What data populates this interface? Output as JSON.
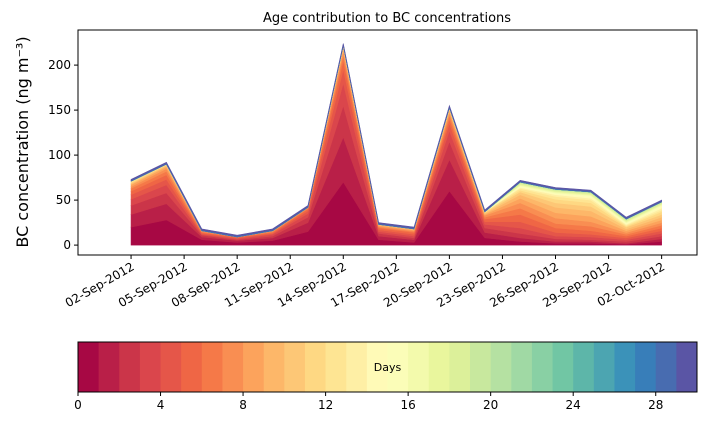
{
  "chart_data": {
    "type": "stacked-area",
    "title": "Age contribution to BC concentrations",
    "ylabel": "BC concentration (ng m⁻³)",
    "x": [
      "2012-09-02",
      "2012-09-04",
      "2012-09-06",
      "2012-09-08",
      "2012-09-10",
      "2012-09-12",
      "2012-09-14",
      "2012-09-16",
      "2012-09-18",
      "2012-09-20",
      "2012-09-22",
      "2012-09-24",
      "2012-09-26",
      "2012-09-28",
      "2012-09-30",
      "2012-10-02"
    ],
    "xlim": [
      "2012-08-30",
      "2012-10-04"
    ],
    "xticks": [
      {
        "value": "2012-09-02",
        "label": "02-Sep-2012"
      },
      {
        "value": "2012-09-05",
        "label": "05-Sep-2012"
      },
      {
        "value": "2012-09-08",
        "label": "08-Sep-2012"
      },
      {
        "value": "2012-09-11",
        "label": "11-Sep-2012"
      },
      {
        "value": "2012-09-14",
        "label": "14-Sep-2012"
      },
      {
        "value": "2012-09-17",
        "label": "17-Sep-2012"
      },
      {
        "value": "2012-09-20",
        "label": "20-Sep-2012"
      },
      {
        "value": "2012-09-23",
        "label": "23-Sep-2012"
      },
      {
        "value": "2012-09-26",
        "label": "26-Sep-2012"
      },
      {
        "value": "2012-09-29",
        "label": "29-Sep-2012"
      },
      {
        "value": "2012-10-02",
        "label": "02-Oct-2012"
      }
    ],
    "ylim": [
      -11,
      239
    ],
    "yticks": [
      0,
      50,
      100,
      150,
      200
    ],
    "colorbar": {
      "label": "Days",
      "lim": [
        0,
        30
      ],
      "ticks": [
        0,
        4,
        8,
        12,
        16,
        20,
        24,
        28
      ]
    },
    "series": [
      {
        "color": "#a70844",
        "values": [
          20,
          28,
          6,
          3,
          5,
          15,
          70,
          6,
          3,
          60,
          8,
          4,
          2,
          2,
          1,
          4
        ]
      },
      {
        "color": "#b91f48",
        "values": [
          14,
          18,
          3,
          2,
          3,
          10,
          50,
          4,
          3,
          35,
          6,
          4,
          2,
          2,
          1,
          3
        ]
      },
      {
        "color": "#cb3549",
        "values": [
          10,
          12,
          2,
          1,
          2,
          6,
          35,
          3,
          2,
          20,
          5,
          5,
          3,
          2,
          2,
          3
        ]
      },
      {
        "color": "#da464c",
        "values": [
          7,
          9,
          1,
          1,
          2,
          4,
          25,
          2,
          2,
          12,
          4,
          6,
          3,
          3,
          2,
          3
        ]
      },
      {
        "color": "#e55649",
        "values": [
          5,
          6,
          1,
          1,
          1,
          3,
          15,
          2,
          2,
          8,
          3,
          7,
          4,
          3,
          2,
          3
        ]
      },
      {
        "color": "#ef6645",
        "values": [
          4,
          5,
          1,
          1,
          1,
          2,
          10,
          2,
          2,
          5,
          3,
          8,
          5,
          4,
          2,
          3
        ]
      },
      {
        "color": "#f57948",
        "values": [
          3,
          4,
          1,
          0,
          1,
          1,
          6,
          1,
          1,
          4,
          2,
          7,
          5,
          5,
          2,
          3
        ]
      },
      {
        "color": "#f98e52",
        "values": [
          2,
          3,
          1,
          0,
          1,
          1,
          4,
          1,
          1,
          3,
          2,
          6,
          6,
          5,
          2,
          3
        ]
      },
      {
        "color": "#fca35c",
        "values": [
          2,
          2,
          0,
          0,
          0,
          0,
          3,
          1,
          1,
          2,
          1,
          5,
          6,
          6,
          2,
          3
        ]
      },
      {
        "color": "#fdb769",
        "values": [
          1,
          1,
          0,
          0,
          0,
          0,
          2,
          1,
          1,
          2,
          1,
          4,
          6,
          6,
          2,
          3
        ]
      },
      {
        "color": "#fdc776",
        "values": [
          1,
          1,
          0,
          0,
          0,
          0,
          1,
          0,
          0,
          1,
          1,
          3,
          5,
          5,
          2,
          3
        ]
      },
      {
        "color": "#fed883",
        "values": [
          1,
          1,
          0,
          0,
          0,
          0,
          1,
          0,
          0,
          1,
          1,
          2,
          4,
          4,
          1,
          3
        ]
      },
      {
        "color": "#fee593",
        "values": [
          1,
          0,
          0,
          0,
          0,
          0,
          0,
          0,
          0,
          0,
          0,
          2,
          3,
          3,
          1,
          2
        ]
      },
      {
        "color": "#feefa5",
        "values": [
          0,
          0,
          0,
          0,
          0,
          0,
          0,
          0,
          0,
          0,
          0,
          1,
          2,
          2,
          1,
          2
        ]
      },
      {
        "color": "#fffab7",
        "values": [
          0,
          0,
          0,
          0,
          0,
          0,
          0,
          0,
          0,
          0,
          0,
          1,
          1,
          2,
          1,
          2
        ]
      },
      {
        "color": "#fbfdb8",
        "values": [
          0,
          0,
          0,
          0,
          0,
          0,
          0,
          0,
          0,
          0,
          0,
          1,
          1,
          1,
          1,
          1
        ]
      },
      {
        "color": "#f3faac",
        "values": [
          0,
          0,
          0,
          0,
          0,
          0,
          0,
          0,
          0,
          0,
          0,
          1,
          1,
          1,
          1,
          1
        ]
      },
      {
        "color": "#e9f69d",
        "values": [
          0,
          0,
          0,
          0,
          0,
          0,
          0,
          0,
          0,
          0,
          0,
          1,
          1,
          1,
          1,
          1
        ]
      },
      {
        "color": "#dcf09a",
        "values": [
          0,
          0,
          0,
          0,
          0,
          0,
          0,
          0,
          0,
          0,
          0,
          1,
          1,
          1,
          1,
          1
        ]
      },
      {
        "color": "#c8e89e",
        "values": [
          0,
          0,
          0,
          0,
          0,
          0,
          0,
          0,
          0,
          0,
          0,
          1,
          1,
          1,
          1,
          1
        ]
      },
      {
        "color": "#b5e1a2",
        "values": [
          0,
          0,
          0,
          0,
          0,
          0,
          0,
          0,
          0,
          0,
          0,
          0,
          0,
          0,
          0,
          0
        ]
      },
      {
        "color": "#a0d9a4",
        "values": [
          0,
          0,
          0,
          0,
          0,
          0,
          0,
          0,
          0,
          0,
          0,
          0,
          0,
          0,
          0,
          0
        ]
      },
      {
        "color": "#89d0a4",
        "values": [
          0,
          0,
          0,
          0,
          0,
          0,
          0,
          0,
          0,
          0,
          0,
          0,
          0,
          0,
          0,
          0
        ]
      },
      {
        "color": "#71c6a4",
        "values": [
          0,
          0,
          0,
          0,
          0,
          0,
          0,
          0,
          0,
          0,
          0,
          0,
          0,
          0,
          0,
          0
        ]
      },
      {
        "color": "#5db6a9",
        "values": [
          0,
          0,
          0,
          0,
          0,
          0,
          0,
          0,
          0,
          0,
          0,
          0,
          0,
          0,
          0,
          0
        ]
      },
      {
        "color": "#4ca5b1",
        "values": [
          0,
          0,
          0,
          0,
          0,
          0,
          0,
          0,
          0,
          0,
          0,
          0,
          0,
          0,
          0,
          0
        ]
      },
      {
        "color": "#3b92b9",
        "values": [
          0,
          0,
          0,
          0,
          0,
          0,
          0,
          0,
          0,
          0,
          0,
          0,
          0,
          0,
          0,
          0
        ]
      },
      {
        "color": "#387eb9",
        "values": [
          0,
          0,
          0,
          0,
          0,
          0,
          0,
          0,
          0,
          0,
          0,
          0,
          0,
          0,
          0,
          0
        ]
      },
      {
        "color": "#486cb0",
        "values": [
          1,
          1,
          1,
          1,
          1,
          1,
          1,
          1,
          1,
          1,
          1,
          1,
          1,
          1,
          1,
          1
        ]
      },
      {
        "color": "#5a55a5",
        "values": [
          1,
          1,
          1,
          1,
          1,
          1,
          1,
          1,
          1,
          1,
          1,
          1,
          1,
          1,
          1,
          1
        ]
      }
    ]
  }
}
